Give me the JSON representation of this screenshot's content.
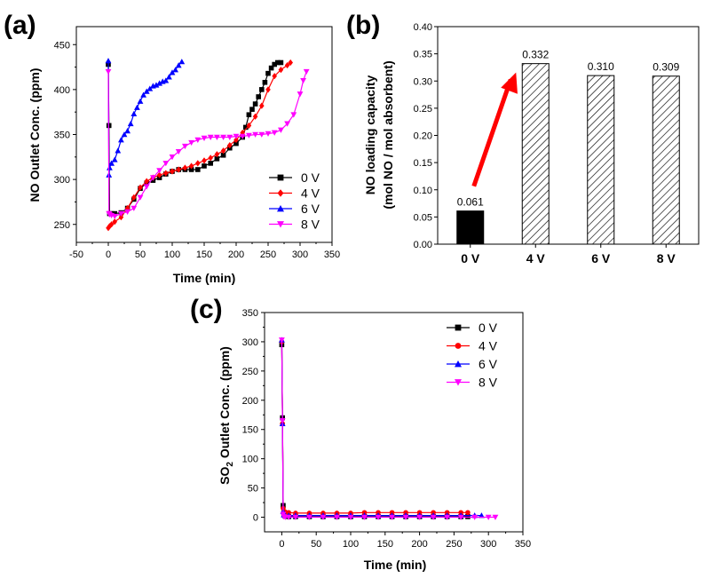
{
  "chart_data": [
    {
      "id": "a",
      "panel_label": "(a)",
      "type": "line",
      "xlabel": "Time (min)",
      "ylabel": "NO Outlet Conc. (ppm)",
      "xlim": [
        -50,
        350
      ],
      "ylim": [
        230,
        470
      ],
      "xticks": [
        -50,
        0,
        50,
        100,
        150,
        200,
        250,
        300,
        350
      ],
      "yticks": [
        250,
        300,
        350,
        400,
        450
      ],
      "legend_position": "right",
      "series": [
        {
          "name": "0 V",
          "color": "#000000",
          "marker": "square",
          "x": [
            0,
            1,
            2,
            5,
            10,
            20,
            30,
            40,
            50,
            60,
            70,
            80,
            90,
            100,
            110,
            120,
            130,
            140,
            150,
            160,
            170,
            180,
            190,
            200,
            210,
            215,
            220,
            225,
            230,
            235,
            240,
            245,
            250,
            255,
            260,
            265,
            270
          ],
          "y": [
            428,
            360,
            262,
            262,
            262,
            263,
            268,
            278,
            290,
            296,
            299,
            302,
            306,
            309,
            311,
            311,
            311,
            311,
            315,
            318,
            323,
            327,
            335,
            340,
            347,
            358,
            372,
            378,
            384,
            392,
            400,
            408,
            418,
            424,
            428,
            430,
            430
          ]
        },
        {
          "name": "4 V",
          "color": "#ff0000",
          "marker": "diamond",
          "x": [
            0,
            2,
            5,
            10,
            20,
            30,
            40,
            50,
            60,
            70,
            80,
            90,
            100,
            110,
            120,
            130,
            140,
            150,
            160,
            170,
            180,
            190,
            200,
            210,
            220,
            230,
            240,
            250,
            260,
            270,
            280,
            285
          ],
          "y": [
            246,
            248,
            250,
            253,
            258,
            268,
            280,
            291,
            298,
            302,
            305,
            307,
            309,
            311,
            313,
            315,
            318,
            321,
            324,
            328,
            332,
            338,
            344,
            352,
            360,
            370,
            382,
            400,
            415,
            422,
            427,
            430
          ]
        },
        {
          "name": "6 V",
          "color": "#0000ff",
          "marker": "triangle-up",
          "x": [
            0,
            1,
            2,
            5,
            10,
            15,
            20,
            25,
            30,
            35,
            40,
            45,
            50,
            55,
            60,
            65,
            70,
            75,
            80,
            85,
            90,
            95,
            100,
            105,
            110,
            115
          ],
          "y": [
            432,
            305,
            313,
            318,
            322,
            332,
            344,
            350,
            354,
            362,
            373,
            380,
            387,
            394,
            398,
            401,
            404,
            405,
            407,
            409,
            410,
            414,
            419,
            422,
            427,
            431
          ]
        },
        {
          "name": "8 V",
          "color": "#ff00ff",
          "marker": "triangle-down",
          "x": [
            0,
            1,
            2,
            5,
            10,
            20,
            30,
            40,
            50,
            60,
            70,
            80,
            90,
            100,
            110,
            120,
            130,
            140,
            150,
            160,
            170,
            180,
            190,
            200,
            210,
            220,
            230,
            240,
            250,
            260,
            270,
            280,
            290,
            300,
            305,
            310
          ],
          "y": [
            420,
            262,
            261,
            260,
            259,
            262,
            264,
            268,
            280,
            292,
            302,
            310,
            318,
            325,
            331,
            337,
            341,
            344,
            346,
            347,
            347,
            347,
            347,
            348,
            348,
            349,
            350,
            350,
            351,
            352,
            355,
            362,
            372,
            395,
            410,
            420
          ]
        }
      ]
    },
    {
      "id": "b",
      "panel_label": "(b)",
      "type": "bar",
      "ylabel_line1": "NO loading capacity",
      "ylabel_line2": "(mol NO / mol absorbent)",
      "categories": [
        "0 V",
        "4 V",
        "6 V",
        "8 V"
      ],
      "values": [
        0.061,
        0.332,
        0.31,
        0.309
      ],
      "value_labels": [
        "0.061",
        "0.332",
        "0.310",
        "0.309"
      ],
      "ylim": [
        0,
        0.4
      ],
      "yticks": [
        "0.00",
        "0.05",
        "0.10",
        "0.15",
        "0.20",
        "0.25",
        "0.30",
        "0.35",
        "0.40"
      ],
      "bar_fills": [
        "solid",
        "hatched",
        "hatched",
        "hatched"
      ],
      "annotation": "red arrow from 0 V bar to 4 V bar",
      "arrow_color": "#ff0000"
    },
    {
      "id": "c",
      "panel_label": "(c)",
      "type": "line",
      "xlabel": "Time (min)",
      "ylabel": "SO2 Outlet Conc. (ppm)",
      "ylabel_main": "SO",
      "ylabel_sub": "2",
      "ylabel_rest": " Outlet Conc. (ppm)",
      "xlim": [
        -25,
        350
      ],
      "ylim": [
        -25,
        350
      ],
      "xticks": [
        0,
        50,
        100,
        150,
        200,
        250,
        300,
        350
      ],
      "yticks": [
        0,
        50,
        100,
        150,
        200,
        250,
        300,
        350
      ],
      "legend_position": "top-right",
      "series": [
        {
          "name": "0 V",
          "color": "#000000",
          "marker": "square",
          "x": [
            0,
            1,
            2,
            3,
            5,
            10,
            20,
            40,
            60,
            80,
            100,
            120,
            140,
            160,
            180,
            200,
            220,
            240,
            260,
            270
          ],
          "y": [
            295,
            170,
            20,
            5,
            2,
            1,
            1,
            1,
            1,
            1,
            1,
            1,
            1,
            1,
            1,
            1,
            1,
            1,
            1,
            1
          ]
        },
        {
          "name": "4 V",
          "color": "#ff0000",
          "marker": "circle",
          "x": [
            0,
            1,
            2,
            3,
            5,
            10,
            20,
            40,
            60,
            80,
            100,
            120,
            140,
            160,
            180,
            200,
            220,
            240,
            260,
            270
          ],
          "y": [
            300,
            160,
            15,
            10,
            9,
            8,
            7,
            7,
            7,
            7,
            7,
            8,
            8,
            8,
            8,
            8,
            8,
            8,
            8,
            8
          ]
        },
        {
          "name": "6 V",
          "color": "#0000ff",
          "marker": "triangle-up",
          "x": [
            0,
            1,
            2,
            3,
            5,
            10,
            20,
            40,
            60,
            80,
            100,
            120,
            140,
            160,
            180,
            200,
            220,
            240,
            260,
            280,
            290
          ],
          "y": [
            303,
            160,
            10,
            4,
            3,
            3,
            3,
            3,
            3,
            3,
            3,
            3,
            3,
            3,
            3,
            3,
            3,
            3,
            3,
            3,
            3
          ]
        },
        {
          "name": "8 V",
          "color": "#ff00ff",
          "marker": "triangle-down",
          "x": [
            0,
            1,
            2,
            3,
            5,
            10,
            20,
            40,
            60,
            80,
            100,
            120,
            140,
            160,
            180,
            200,
            220,
            240,
            260,
            280,
            300,
            310
          ],
          "y": [
            303,
            165,
            5,
            1,
            0,
            0,
            0,
            0,
            0,
            0,
            0,
            0,
            0,
            0,
            0,
            0,
            0,
            0,
            0,
            0,
            0,
            0
          ]
        }
      ]
    }
  ]
}
